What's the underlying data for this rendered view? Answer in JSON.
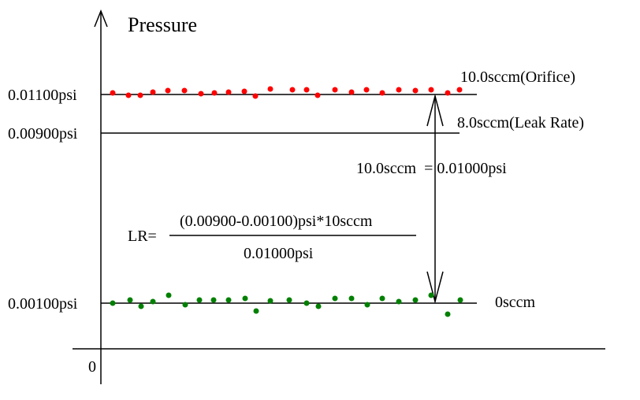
{
  "diagram": {
    "y_axis_label": "Pressure",
    "origin_label": "0",
    "levels": [
      {
        "id": "orifice",
        "value_label": "0.01100psi",
        "right_label": "10.0sccm(Orifice)"
      },
      {
        "id": "leak",
        "value_label": "0.00900psi",
        "right_label": "8.0sccm(Leak Rate)"
      },
      {
        "id": "zero",
        "value_label": "0.00100psi",
        "right_label": "0sccm"
      }
    ],
    "span_label": "10.0sccm  = 0.01000psi",
    "formula": {
      "prefix": "LR=",
      "numerator": "(0.00900-0.00100)psi*10sccm",
      "denominator": "0.01000psi"
    },
    "colors": {
      "orifice_points": "#ff0000",
      "zero_points": "#008000",
      "lines": "#000000"
    }
  }
}
